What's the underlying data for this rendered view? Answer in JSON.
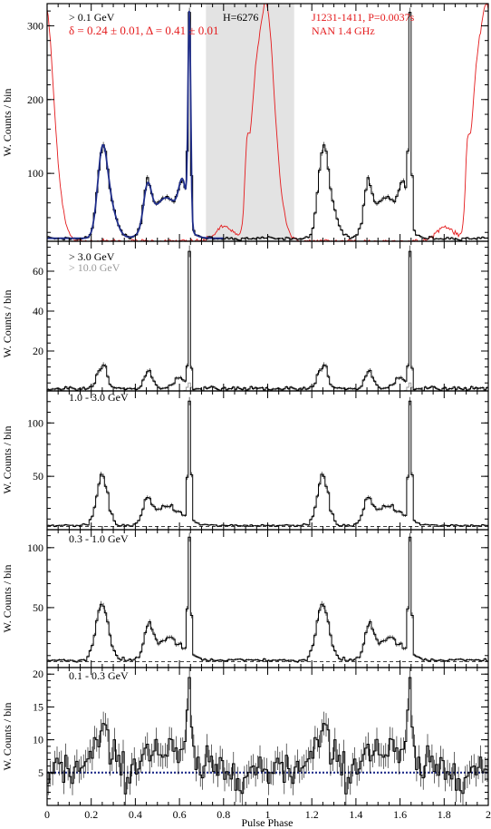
{
  "chart_data": [
    {
      "type": "line",
      "title": "",
      "xlabel": "",
      "ylabel": "W. Counts / bin",
      "xlim": [
        0,
        2
      ],
      "ylim": [
        8,
        330
      ],
      "yticks": [
        100,
        200,
        300
      ],
      "shaded_region": [
        0.72,
        1.12
      ],
      "annotations": [
        {
          "id": "energy",
          "text": "> 0.1 GeV",
          "color": "#000000"
        },
        {
          "id": "hval",
          "text": "H=6276",
          "color": "#000000"
        },
        {
          "id": "fit",
          "text": "δ = 0.24 ± 0.01, Δ = 0.41 ± 0.01",
          "color": "#e41a1c"
        },
        {
          "id": "pulsar",
          "text": "J1231-1411, P=0.0037s",
          "color": "#e41a1c"
        },
        {
          "id": "radio",
          "text": "NAN 1.4 GHz",
          "color": "#e41a1c"
        }
      ],
      "gamma_background": 12,
      "gamma_peaks": [
        {
          "center": 0.25,
          "height": 105,
          "width": 0.022
        },
        {
          "center": 0.285,
          "height": 40,
          "width": 0.03
        },
        {
          "center": 0.455,
          "height": 55,
          "width": 0.018
        },
        {
          "center": 0.54,
          "height": 55,
          "width": 0.06
        },
        {
          "center": 0.615,
          "height": 55,
          "width": 0.018
        },
        {
          "center": 0.645,
          "height": 285,
          "width": 0.006
        }
      ],
      "model_color": "#1f2d8a",
      "radio_profile_color": "#e41a1c",
      "radio_baseline": 8,
      "radio_peaks": [
        {
          "center": 0.995,
          "height": 300,
          "width": 0.032
        },
        {
          "center": 0.94,
          "height": 150,
          "width": 0.025
        },
        {
          "center": 0.905,
          "height": 75,
          "width": 0.009
        },
        {
          "center": 1.05,
          "height": 40,
          "width": 0.03
        },
        {
          "center": 0.805,
          "height": 20,
          "width": 0.04
        }
      ]
    },
    {
      "type": "line",
      "title": "",
      "xlabel": "",
      "ylabel": "W. Counts / bin",
      "xlim": [
        0,
        2
      ],
      "ylim": [
        0,
        75
      ],
      "yticks": [
        20,
        40,
        60
      ],
      "annotations": [
        {
          "id": "energy",
          "text": "> 3.0 GeV",
          "color": "#000000"
        },
        {
          "id": "energy2",
          "text": "> 10.0 GeV",
          "color": "#999999"
        }
      ],
      "gamma_background": 1.2,
      "gamma_peaks": [
        {
          "center": 0.25,
          "height": 14,
          "width": 0.018
        },
        {
          "center": 0.46,
          "height": 9,
          "width": 0.018
        },
        {
          "center": 0.6,
          "height": 5,
          "width": 0.03
        },
        {
          "center": 0.645,
          "height": 68,
          "width": 0.005
        }
      ],
      "secondary_series_color": "#999999",
      "secondary_peaks": [
        {
          "center": 0.645,
          "height": 4,
          "width": 0.008
        }
      ]
    },
    {
      "type": "line",
      "title": "",
      "xlabel": "",
      "ylabel": "W. Counts / bin",
      "xlim": [
        0,
        2
      ],
      "ylim": [
        0,
        130
      ],
      "yticks": [
        50,
        100
      ],
      "annotations": [
        {
          "id": "energy",
          "text": "1.0 - 3.0 GeV",
          "color": "#000000"
        }
      ],
      "background_line": 3,
      "background_style": "dashed",
      "gamma_background": 4,
      "gamma_peaks": [
        {
          "center": 0.25,
          "height": 45,
          "width": 0.025
        },
        {
          "center": 0.455,
          "height": 20,
          "width": 0.02
        },
        {
          "center": 0.55,
          "height": 18,
          "width": 0.06
        },
        {
          "center": 0.645,
          "height": 115,
          "width": 0.007
        }
      ]
    },
    {
      "type": "line",
      "title": "",
      "xlabel": "",
      "ylabel": "W. Counts / bin",
      "xlim": [
        0,
        2
      ],
      "ylim": [
        0,
        115
      ],
      "yticks": [
        50,
        100
      ],
      "annotations": [
        {
          "id": "energy",
          "text": "0.3 - 1.0 GeV",
          "color": "#000000"
        }
      ],
      "background_line": 5,
      "background_style": "dashed",
      "gamma_background": 6,
      "gamma_peaks": [
        {
          "center": 0.25,
          "height": 48,
          "width": 0.028
        },
        {
          "center": 0.46,
          "height": 25,
          "width": 0.02
        },
        {
          "center": 0.55,
          "height": 18,
          "width": 0.06
        },
        {
          "center": 0.645,
          "height": 98,
          "width": 0.007
        }
      ]
    },
    {
      "type": "line",
      "title": "",
      "xlabel": "Pulse Phase",
      "ylabel": "W. Counts / bin",
      "xlim": [
        0,
        2
      ],
      "ylim": [
        0,
        21
      ],
      "yticks": [
        5,
        10,
        15,
        20
      ],
      "xticks": [
        0,
        0.2,
        0.4,
        0.6,
        0.8,
        1,
        1.2,
        1.4,
        1.6,
        1.8,
        2
      ],
      "annotations": [
        {
          "id": "energy",
          "text": "0.1 - 0.3 GeV",
          "color": "#000000"
        }
      ],
      "background_line": 5,
      "background_style": "dotted",
      "background_color": "#1f2d8a",
      "gamma_background": 5.5,
      "gamma_peaks": [
        {
          "center": 0.25,
          "height": 5,
          "width": 0.035
        },
        {
          "center": 0.46,
          "height": 3,
          "width": 0.03
        },
        {
          "center": 0.56,
          "height": 2.5,
          "width": 0.06
        },
        {
          "center": 0.645,
          "height": 12,
          "width": 0.009
        }
      ],
      "noise_level": 1.8
    }
  ]
}
